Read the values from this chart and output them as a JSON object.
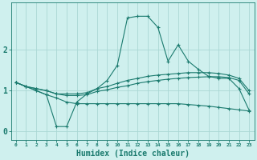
{
  "xlabel": "Humidex (Indice chaleur)",
  "background_color": "#cff0ee",
  "line_color": "#1a7a6e",
  "grid_color": "#aad8d4",
  "x_values": [
    0,
    1,
    2,
    3,
    4,
    5,
    6,
    7,
    8,
    9,
    10,
    11,
    12,
    13,
    14,
    15,
    16,
    17,
    18,
    19,
    20,
    21,
    22,
    23
  ],
  "line1": [
    1.2,
    1.1,
    1.0,
    0.9,
    0.12,
    0.12,
    0.72,
    0.92,
    1.05,
    1.25,
    1.62,
    2.78,
    2.82,
    2.82,
    2.55,
    1.72,
    2.12,
    1.72,
    1.52,
    1.35,
    1.3,
    1.3,
    1.05,
    0.52
  ],
  "line2": [
    1.2,
    1.1,
    1.05,
    1.0,
    0.92,
    0.92,
    0.92,
    0.95,
    1.05,
    1.1,
    1.18,
    1.25,
    1.3,
    1.35,
    1.38,
    1.4,
    1.42,
    1.44,
    1.44,
    1.44,
    1.42,
    1.38,
    1.3,
    1.0
  ],
  "line3": [
    1.2,
    1.1,
    1.05,
    1.0,
    0.92,
    0.88,
    0.88,
    0.9,
    0.98,
    1.02,
    1.08,
    1.12,
    1.18,
    1.22,
    1.25,
    1.28,
    1.3,
    1.32,
    1.33,
    1.34,
    1.34,
    1.32,
    1.25,
    0.92
  ],
  "line4": [
    1.2,
    1.1,
    1.0,
    0.9,
    0.82,
    0.72,
    0.68,
    0.68,
    0.68,
    0.68,
    0.68,
    0.68,
    0.68,
    0.68,
    0.68,
    0.68,
    0.68,
    0.66,
    0.64,
    0.62,
    0.59,
    0.56,
    0.53,
    0.5
  ],
  "yticks": [
    0,
    1,
    2
  ],
  "ylim": [
    -0.2,
    3.15
  ],
  "xlim": [
    -0.5,
    23.5
  ]
}
